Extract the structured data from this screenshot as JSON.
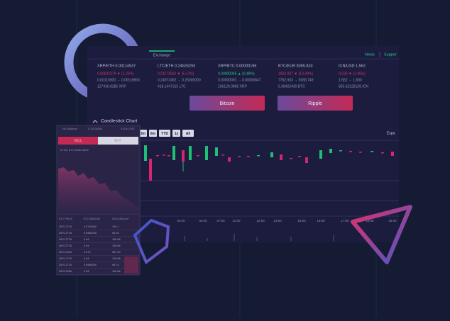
{
  "nav": {
    "tabs": [
      "Exchange"
    ],
    "links": [
      "News",
      "Suppor"
    ]
  },
  "tickers": [
    {
      "pair": "XRP/ETH 0.00114537",
      "change": "0.00002379 ▼ (1.25%)",
      "range": "0.00110000 → 0.00118963",
      "volume": "127430.8285 XRP",
      "color": "#e0306a"
    },
    {
      "pair": "LTC/ETH 0.24626293",
      "change": "0.01173503 ▼ (5.17%)",
      "range": "0.24972462 → 0.26000000",
      "volume": "418.1447315 LTC",
      "color": "#e0306a"
    },
    {
      "pair": "XRP/BTC 0.00000196",
      "change": "0.00000045 ▲ (0.48%)",
      "range": "0.00000001 → 0.00000647",
      "volume": "196129.0868 XRP",
      "color": "#1fd07c"
    },
    {
      "pair": "BTC/EUR 8355.833",
      "change": "1833.007 ▼ (13.29%)",
      "range": "7762.933 → 9368.749",
      "volume": "5.38423430 BTC",
      "color": "#e0306a"
    },
    {
      "pair": "ICN/USD 1.562",
      "change": "0.030 ▼ (1.45%)",
      "range": "1.562 → 1.600",
      "volume": "855.62128128 ICN",
      "color": "#e0306a"
    }
  ],
  "buttons": [
    "Bitcoin",
    "Ripple"
  ],
  "chart": {
    "title": "Candlestick Chart",
    "ranges": [
      "1m",
      "3m",
      "6m",
      "YTD",
      "1y",
      "All"
    ],
    "expand": "Expa",
    "times": [
      "03:00",
      "06:00",
      "07:00",
      "11:00",
      "12:00",
      "14:00",
      "15:00",
      "16:00",
      "17:00",
      "18:00",
      "19:00"
    ]
  },
  "mobile": {
    "balance_label": "No. Balance",
    "balance": "0.12300000",
    "balance_alt": "0.5244 XBT",
    "sell": "SELL",
    "buy": "BUY",
    "available": "TOTAL BTC AVAILABLE",
    "headers": [
      "BTC PRICE",
      "BTC AMOUNT",
      "USD AMOUNT"
    ],
    "rows": [
      [
        "2670.2715",
        "0.9794082",
        "100.1"
      ],
      [
        "2670.2715",
        "0.0980000",
        "90.03"
      ],
      [
        "2670.2715",
        "0.04",
        "106.66"
      ],
      [
        "2670.2715",
        "0.04",
        "106.66"
      ],
      [
        "2670.2050",
        "0.073",
        "987.00"
      ],
      [
        "2670.2715",
        "0.04",
        "106.66"
      ],
      [
        "2670.2715",
        "0.0980000",
        "98.74"
      ],
      [
        "2670.2050",
        "0.04",
        "106.66"
      ]
    ]
  }
}
